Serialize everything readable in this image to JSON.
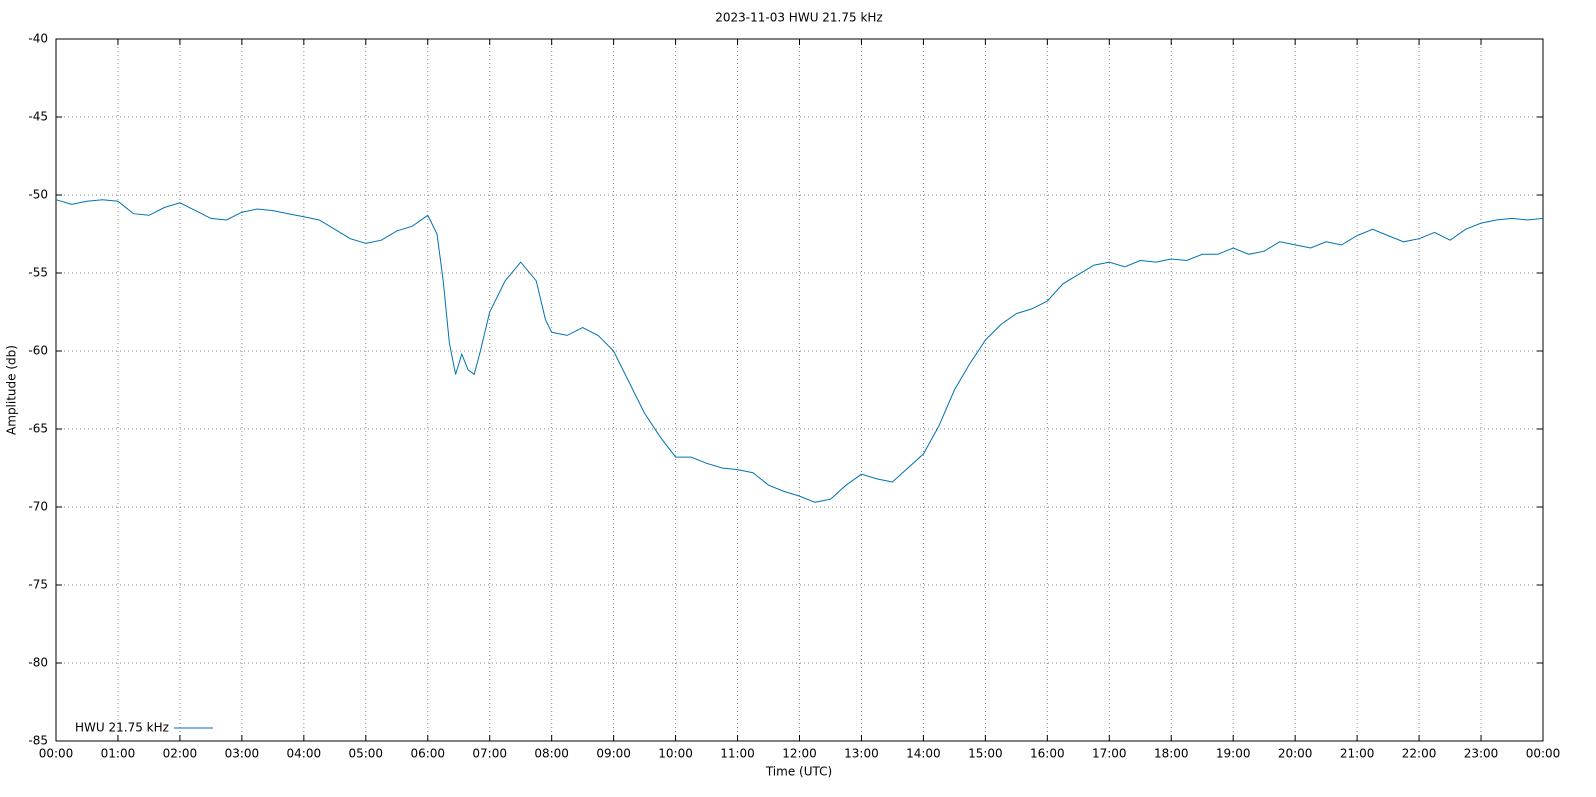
{
  "chart_data": {
    "type": "line",
    "title": "2023-11-03 HWU 21.75 kHz",
    "x_label": "Time (UTC)",
    "y_label": "Amplitude (db)",
    "xlim": [
      0,
      24
    ],
    "ylim": [
      -85,
      -40
    ],
    "xticks": [
      {
        "value": 0,
        "label": "00:00"
      },
      {
        "value": 1,
        "label": "01:00"
      },
      {
        "value": 2,
        "label": "02:00"
      },
      {
        "value": 3,
        "label": "03:00"
      },
      {
        "value": 4,
        "label": "04:00"
      },
      {
        "value": 5,
        "label": "05:00"
      },
      {
        "value": 6,
        "label": "06:00"
      },
      {
        "value": 7,
        "label": "07:00"
      },
      {
        "value": 8,
        "label": "08:00"
      },
      {
        "value": 9,
        "label": "09:00"
      },
      {
        "value": 10,
        "label": "10:00"
      },
      {
        "value": 11,
        "label": "11:00"
      },
      {
        "value": 12,
        "label": "12:00"
      },
      {
        "value": 13,
        "label": "13:00"
      },
      {
        "value": 14,
        "label": "14:00"
      },
      {
        "value": 15,
        "label": "15:00"
      },
      {
        "value": 16,
        "label": "16:00"
      },
      {
        "value": 17,
        "label": "17:00"
      },
      {
        "value": 18,
        "label": "18:00"
      },
      {
        "value": 19,
        "label": "19:00"
      },
      {
        "value": 20,
        "label": "20:00"
      },
      {
        "value": 21,
        "label": "21:00"
      },
      {
        "value": 22,
        "label": "22:00"
      },
      {
        "value": 23,
        "label": "23:00"
      },
      {
        "value": 24,
        "label": "00:00"
      }
    ],
    "yticks": [
      -40,
      -45,
      -50,
      -55,
      -60,
      -65,
      -70,
      -75,
      -80,
      -85
    ],
    "grid": true,
    "legend": "bottom-left",
    "x": [
      0,
      0.25,
      0.5,
      0.75,
      1,
      1.25,
      1.5,
      1.75,
      2,
      2.25,
      2.5,
      2.75,
      3,
      3.25,
      3.5,
      3.75,
      4,
      4.25,
      4.5,
      4.75,
      5,
      5.25,
      5.5,
      5.75,
      6,
      6.15,
      6.25,
      6.35,
      6.45,
      6.55,
      6.65,
      6.75,
      6.85,
      7,
      7.25,
      7.5,
      7.75,
      7.9,
      8,
      8.25,
      8.5,
      8.75,
      9,
      9.25,
      9.5,
      9.75,
      10,
      10.25,
      10.5,
      10.75,
      11,
      11.25,
      11.5,
      11.75,
      12,
      12.25,
      12.5,
      12.75,
      13,
      13.25,
      13.5,
      13.75,
      14,
      14.25,
      14.5,
      14.75,
      15,
      15.25,
      15.5,
      15.75,
      16,
      16.25,
      16.5,
      16.75,
      17,
      17.25,
      17.5,
      17.75,
      18,
      18.25,
      18.5,
      18.75,
      19,
      19.25,
      19.5,
      19.75,
      20,
      20.25,
      20.5,
      20.75,
      21,
      21.25,
      21.5,
      21.75,
      22,
      22.25,
      22.5,
      22.75,
      23,
      23.25,
      23.5,
      23.75,
      24
    ],
    "series": [
      {
        "name": "HWU 21.75 kHz",
        "color": "#0072b2",
        "values": [
          -50.3,
          -50.6,
          -50.4,
          -50.3,
          -50.4,
          -51.2,
          -51.3,
          -50.8,
          -50.5,
          -51.0,
          -51.5,
          -51.6,
          -51.1,
          -50.9,
          -51.0,
          -51.2,
          -51.4,
          -51.6,
          -52.2,
          -52.8,
          -53.1,
          -52.9,
          -52.3,
          -52.0,
          -51.3,
          -52.5,
          -55.5,
          -59.5,
          -61.5,
          -60.2,
          -61.2,
          -61.5,
          -60.0,
          -57.5,
          -55.5,
          -54.3,
          -55.5,
          -58.0,
          -58.8,
          -59.0,
          -58.5,
          -59.0,
          -60.0,
          -62.0,
          -64.0,
          -65.5,
          -66.8,
          -66.8,
          -67.2,
          -67.5,
          -67.6,
          -67.8,
          -68.6,
          -69.0,
          -69.3,
          -69.7,
          -69.5,
          -68.6,
          -67.9,
          -68.2,
          -68.4,
          -67.5,
          -66.6,
          -64.8,
          -62.5,
          -60.8,
          -59.3,
          -58.3,
          -57.6,
          -57.3,
          -56.8,
          -55.7,
          -55.1,
          -54.5,
          -54.3,
          -54.6,
          -54.2,
          -54.3,
          -54.1,
          -54.2,
          -53.8,
          -53.8,
          -53.4,
          -53.8,
          -53.6,
          -53.0,
          -53.2,
          -53.4,
          -53.0,
          -53.2,
          -52.6,
          -52.2,
          -52.6,
          -53.0,
          -52.8,
          -52.4,
          -52.9,
          -52.2,
          -51.8,
          -51.6,
          -51.5,
          -51.6,
          -51.5
        ]
      }
    ]
  }
}
